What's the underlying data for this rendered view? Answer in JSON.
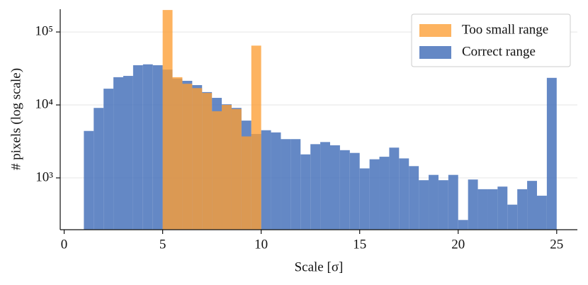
{
  "chart_data": {
    "type": "histogram",
    "xlabel": "Scale [σ]",
    "ylabel": "# pixels (log scale)",
    "xlim": [
      -0.2,
      26.05
    ],
    "ylim": [
      195,
      205000
    ],
    "log_y": true,
    "grid": true,
    "legend": "upper right",
    "xticks": [
      0,
      5,
      10,
      15,
      20,
      25
    ],
    "yticks": [
      {
        "value": 1000,
        "label": "10³"
      },
      {
        "value": 10000,
        "label": "10⁴"
      },
      {
        "value": 100000,
        "label": "10⁵"
      }
    ],
    "series": [
      {
        "name": "Correct range",
        "color": "#4f78bd",
        "bins": [
          1,
          1.5,
          2,
          2.5,
          3,
          3.5,
          4,
          4.5,
          5,
          5.5,
          6,
          6.5,
          7,
          7.5,
          8,
          8.5,
          9,
          9.5,
          10,
          10.5,
          11,
          11.5,
          12,
          12.5,
          13,
          13.5,
          14,
          14.5,
          15,
          15.5,
          16,
          16.5,
          17,
          17.5,
          18,
          18.5,
          19,
          19.5,
          20,
          20.5,
          21,
          21.5,
          22,
          22.5,
          23,
          23.5,
          24,
          24.5,
          25
        ],
        "values": [
          4400,
          9100,
          16700,
          24000,
          25000,
          35000,
          36000,
          35000,
          30500,
          23000,
          21400,
          18700,
          15000,
          12500,
          10200,
          9100,
          6100,
          4000,
          4500,
          4200,
          3400,
          3400,
          2100,
          2900,
          3100,
          2800,
          2400,
          2200,
          1350,
          1800,
          1950,
          2600,
          1850,
          1450,
          930,
          1100,
          930,
          1100,
          265,
          950,
          700,
          700,
          760,
          430,
          700,
          910,
          570,
          23500
        ]
      },
      {
        "name": "Too small range",
        "color": "#fd9d33",
        "bins": [
          5,
          5.5,
          6,
          6.5,
          7,
          7.5,
          8,
          8.5,
          9,
          9.5,
          10
        ],
        "values": [
          200000,
          24000,
          19500,
          17000,
          14600,
          8200,
          10000,
          8800,
          3700,
          65000
        ]
      }
    ]
  }
}
